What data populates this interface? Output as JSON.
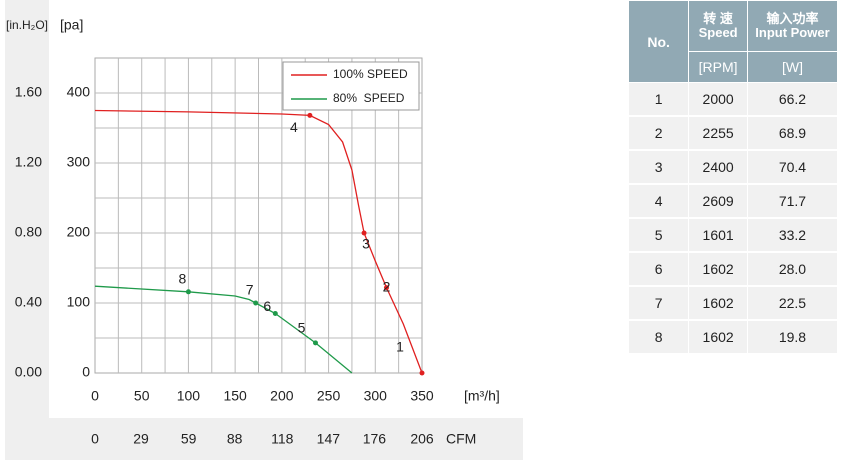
{
  "chart_data": {
    "type": "line",
    "y_label": "[pa]",
    "y2_label": "[in.H₂O]",
    "x_label": "[m³/h]",
    "x2_label": "CFM",
    "xlim": [
      0,
      350
    ],
    "xticks": [
      0,
      50,
      100,
      150,
      200,
      250,
      300,
      350
    ],
    "x2lim": [
      0,
      206
    ],
    "x2ticks": [
      0,
      29,
      59,
      88,
      118,
      147,
      176,
      206
    ],
    "ylim": [
      0,
      450
    ],
    "yticks": [
      0,
      100,
      200,
      300,
      400
    ],
    "y2lim": [
      0,
      1.8
    ],
    "y2ticks": [
      {
        "value": 0,
        "label": "0.00"
      },
      {
        "value": 0.4,
        "label": "0.40"
      },
      {
        "value": 0.8,
        "label": "0.80"
      },
      {
        "value": 1.2,
        "label": "1.20"
      },
      {
        "value": 1.6,
        "label": "1.60"
      }
    ],
    "xgrid": [
      25,
      50,
      75,
      100,
      125,
      150,
      175,
      200,
      225,
      250,
      275,
      300,
      325
    ],
    "ygrid": [
      50,
      100,
      150,
      200,
      250,
      300,
      350,
      400
    ],
    "grid": true,
    "legend": "upper right",
    "series": [
      {
        "name": "100% SPEED",
        "color": "#e02020",
        "x": [
          0,
          100,
          200,
          230,
          250,
          265,
          275,
          282,
          288,
          300,
          312,
          330,
          350
        ],
        "values": [
          375,
          373,
          370,
          368,
          355,
          330,
          290,
          240,
          200,
          160,
          122,
          70,
          0
        ]
      },
      {
        "name": "80%  SPEED",
        "color": "#1f9a4a",
        "x": [
          0,
          100,
          150,
          165,
          172,
          193,
          236,
          275
        ],
        "values": [
          124,
          116,
          110,
          105,
          100,
          85,
          43,
          0
        ]
      }
    ],
    "annotations": [
      {
        "text": "1",
        "series": 0,
        "x": 350,
        "y": 0
      },
      {
        "text": "2",
        "series": 0,
        "x": 312,
        "y": 122
      },
      {
        "text": "3",
        "series": 0,
        "x": 288,
        "y": 200
      },
      {
        "text": "4",
        "series": 0,
        "x": 230,
        "y": 368
      },
      {
        "text": "5",
        "series": 1,
        "x": 236,
        "y": 43
      },
      {
        "text": "6",
        "series": 1,
        "x": 193,
        "y": 85
      },
      {
        "text": "7",
        "series": 1,
        "x": 172,
        "y": 100
      },
      {
        "text": "8",
        "series": 1,
        "x": 100,
        "y": 116
      }
    ]
  },
  "table": {
    "header": {
      "no": "No.",
      "speed_cn": "转 速",
      "speed_en": "Speed",
      "power_cn": "输入功率",
      "power_en": "Input Power",
      "speed_unit": "[RPM]",
      "power_unit": "[W]"
    },
    "rows": [
      [
        "1",
        "2000",
        "66.2"
      ],
      [
        "2",
        "2255",
        "68.9"
      ],
      [
        "3",
        "2400",
        "70.4"
      ],
      [
        "4",
        "2609",
        "71.7"
      ],
      [
        "5",
        "1601",
        "33.2"
      ],
      [
        "6",
        "1602",
        "28.0"
      ],
      [
        "7",
        "1602",
        "22.5"
      ],
      [
        "8",
        "1602",
        "19.8"
      ]
    ]
  }
}
